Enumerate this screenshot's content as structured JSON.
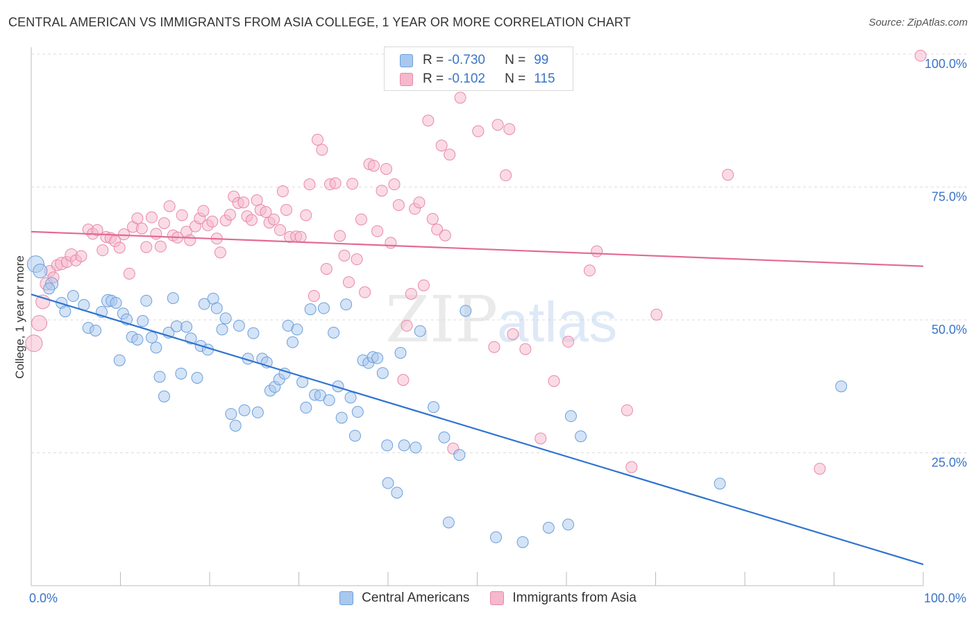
{
  "title": "CENTRAL AMERICAN VS IMMIGRANTS FROM ASIA COLLEGE, 1 YEAR OR MORE CORRELATION CHART",
  "source": "Source: ZipAtlas.com",
  "watermark": {
    "zip": "ZIP",
    "atlas": "atlas"
  },
  "colors": {
    "blue_fill": "#a9c8ee",
    "blue_stroke": "#6a9fdc",
    "blue_line": "#2f73d0",
    "pink_fill": "#f6b8cb",
    "pink_stroke": "#e888a8",
    "pink_line": "#e36a95",
    "tick_label": "#3a74c8",
    "grid": "#dcdcdc"
  },
  "legend_top": [
    {
      "r_label": "R =",
      "r_value": "-0.730",
      "n_label": "N =",
      "n_value": "99"
    },
    {
      "r_label": "R =",
      "r_value": "-0.102",
      "n_label": "N =",
      "n_value": "115"
    }
  ],
  "chart_data": {
    "type": "scatter",
    "title": "CENTRAL AMERICAN VS IMMIGRANTS FROM ASIA COLLEGE, 1 YEAR OR MORE CORRELATION CHART",
    "xlabel": "",
    "ylabel": "College, 1 year or more",
    "xlim": [
      0,
      100
    ],
    "ylim": [
      0,
      100
    ],
    "x_tick_labels": [
      "0.0%",
      "100.0%"
    ],
    "y_ticks": [
      25,
      50,
      75,
      100
    ],
    "y_tick_labels": [
      "25.0%",
      "50.0%",
      "75.0%",
      "100.0%"
    ],
    "grid": "horizontal dashed",
    "legend": "bottom",
    "series": [
      {
        "name": "Central Americans",
        "R": -0.73,
        "N": 99,
        "trend": {
          "x": [
            0,
            100
          ],
          "y": [
            54.8,
            4.0
          ]
        },
        "points": [
          [
            0.5,
            60.5,
            12
          ],
          [
            1.0,
            59.2,
            10
          ],
          [
            2.3,
            56.8,
            9
          ],
          [
            2.0,
            55.9,
            8
          ],
          [
            3.4,
            53.2,
            8
          ],
          [
            3.8,
            51.6,
            8
          ],
          [
            4.7,
            54.5,
            8
          ],
          [
            5.9,
            52.8,
            8
          ],
          [
            6.4,
            48.5,
            8
          ],
          [
            7.2,
            48.0,
            8
          ],
          [
            7.9,
            51.5,
            8
          ],
          [
            8.6,
            53.6,
            9
          ],
          [
            9.0,
            53.6,
            8
          ],
          [
            9.5,
            53.2,
            8
          ],
          [
            9.9,
            42.4,
            8
          ],
          [
            10.3,
            51.2,
            8
          ],
          [
            10.7,
            50.1,
            8
          ],
          [
            11.3,
            46.8,
            8
          ],
          [
            11.9,
            46.3,
            8
          ],
          [
            12.5,
            49.8,
            8
          ],
          [
            12.9,
            53.6,
            8
          ],
          [
            13.5,
            46.7,
            8
          ],
          [
            14.0,
            44.8,
            8
          ],
          [
            14.4,
            39.3,
            8
          ],
          [
            14.9,
            35.6,
            8
          ],
          [
            15.4,
            47.6,
            8
          ],
          [
            15.9,
            54.1,
            8
          ],
          [
            16.3,
            48.8,
            8
          ],
          [
            16.8,
            39.9,
            8
          ],
          [
            17.4,
            48.7,
            8
          ],
          [
            17.9,
            46.5,
            8
          ],
          [
            18.6,
            39.1,
            8
          ],
          [
            19.0,
            45.1,
            8
          ],
          [
            19.4,
            53.0,
            8
          ],
          [
            19.8,
            44.4,
            8
          ],
          [
            20.4,
            54.0,
            8
          ],
          [
            20.8,
            52.2,
            8
          ],
          [
            21.4,
            48.2,
            8
          ],
          [
            21.8,
            50.3,
            8
          ],
          [
            22.4,
            32.3,
            8
          ],
          [
            22.9,
            30.1,
            8
          ],
          [
            23.3,
            48.9,
            8
          ],
          [
            23.9,
            33.0,
            8
          ],
          [
            24.3,
            42.7,
            8
          ],
          [
            24.9,
            47.5,
            8
          ],
          [
            25.4,
            32.6,
            8
          ],
          [
            25.9,
            42.7,
            8
          ],
          [
            26.4,
            42.0,
            8
          ],
          [
            26.8,
            36.7,
            8
          ],
          [
            27.3,
            37.4,
            8
          ],
          [
            27.8,
            38.8,
            8
          ],
          [
            28.4,
            39.9,
            8
          ],
          [
            28.8,
            48.9,
            8
          ],
          [
            29.3,
            45.8,
            8
          ],
          [
            29.8,
            48.2,
            8
          ],
          [
            30.4,
            38.3,
            8
          ],
          [
            30.8,
            33.5,
            8
          ],
          [
            31.3,
            52.0,
            8
          ],
          [
            31.8,
            35.9,
            8
          ],
          [
            32.4,
            35.8,
            8
          ],
          [
            32.8,
            52.2,
            8
          ],
          [
            33.4,
            34.9,
            8
          ],
          [
            33.9,
            47.6,
            8
          ],
          [
            34.4,
            37.5,
            8
          ],
          [
            34.8,
            31.6,
            8
          ],
          [
            35.3,
            52.9,
            8
          ],
          [
            35.8,
            35.4,
            8
          ],
          [
            36.3,
            28.2,
            8
          ],
          [
            36.6,
            32.7,
            8
          ],
          [
            37.2,
            42.4,
            8
          ],
          [
            37.8,
            41.9,
            8
          ],
          [
            38.3,
            43.0,
            8
          ],
          [
            38.8,
            42.8,
            8
          ],
          [
            39.4,
            40.0,
            8
          ],
          [
            39.9,
            26.4,
            8
          ],
          [
            40.0,
            19.3,
            8
          ],
          [
            41.0,
            17.5,
            8
          ],
          [
            41.4,
            43.8,
            8
          ],
          [
            41.8,
            26.4,
            8
          ],
          [
            43.1,
            26.0,
            8
          ],
          [
            43.6,
            47.9,
            8
          ],
          [
            45.1,
            33.6,
            8
          ],
          [
            46.3,
            27.9,
            8
          ],
          [
            46.8,
            11.9,
            8
          ],
          [
            48.0,
            24.6,
            8
          ],
          [
            48.7,
            51.7,
            8
          ],
          [
            52.1,
            9.1,
            8
          ],
          [
            55.1,
            8.2,
            8
          ],
          [
            58.0,
            10.9,
            8
          ],
          [
            60.2,
            11.5,
            8
          ],
          [
            60.5,
            31.9,
            8
          ],
          [
            61.6,
            28.1,
            8
          ],
          [
            77.2,
            19.2,
            8
          ],
          [
            90.8,
            37.5,
            8
          ]
        ]
      },
      {
        "name": "Immigrants from Asia",
        "R": -0.102,
        "N": 115,
        "trend": {
          "x": [
            0,
            100
          ],
          "y": [
            66.6,
            60.1
          ]
        },
        "points": [
          [
            0.3,
            45.6,
            12
          ],
          [
            0.9,
            49.4,
            11
          ],
          [
            1.3,
            53.4,
            10
          ],
          [
            1.7,
            56.8,
            9
          ],
          [
            2.1,
            59.2,
            8
          ],
          [
            2.5,
            58.0,
            8
          ],
          [
            2.9,
            60.3,
            8
          ],
          [
            3.4,
            60.6,
            9
          ],
          [
            4.0,
            60.9,
            8
          ],
          [
            4.5,
            62.2,
            9
          ],
          [
            5.0,
            61.2,
            8
          ],
          [
            5.6,
            62.0,
            8
          ],
          [
            6.4,
            67.0,
            8
          ],
          [
            6.9,
            66.2,
            8
          ],
          [
            7.4,
            66.9,
            8
          ],
          [
            8.0,
            63.1,
            8
          ],
          [
            8.4,
            65.6,
            8
          ],
          [
            8.9,
            65.4,
            8
          ],
          [
            9.4,
            64.8,
            8
          ],
          [
            9.9,
            63.6,
            8
          ],
          [
            10.4,
            66.1,
            8
          ],
          [
            11.0,
            58.7,
            8
          ],
          [
            11.4,
            67.5,
            8
          ],
          [
            11.9,
            69.1,
            8
          ],
          [
            12.4,
            67.2,
            8
          ],
          [
            12.9,
            63.7,
            8
          ],
          [
            13.5,
            69.3,
            8
          ],
          [
            14.0,
            66.2,
            8
          ],
          [
            14.5,
            63.8,
            8
          ],
          [
            14.9,
            68.2,
            8
          ],
          [
            15.5,
            71.4,
            8
          ],
          [
            15.9,
            65.9,
            8
          ],
          [
            16.4,
            65.5,
            8
          ],
          [
            16.9,
            69.7,
            8
          ],
          [
            17.4,
            66.6,
            8
          ],
          [
            17.8,
            65.0,
            8
          ],
          [
            18.4,
            67.6,
            8
          ],
          [
            18.9,
            69.1,
            8
          ],
          [
            19.3,
            70.5,
            8
          ],
          [
            19.8,
            67.8,
            8
          ],
          [
            20.3,
            68.5,
            8
          ],
          [
            20.8,
            65.3,
            8
          ],
          [
            21.2,
            62.7,
            8
          ],
          [
            21.8,
            68.7,
            8
          ],
          [
            22.3,
            69.8,
            8
          ],
          [
            22.7,
            73.2,
            8
          ],
          [
            23.2,
            72.0,
            8
          ],
          [
            23.8,
            72.1,
            8
          ],
          [
            24.2,
            69.5,
            8
          ],
          [
            24.7,
            68.8,
            8
          ],
          [
            25.3,
            72.5,
            8
          ],
          [
            25.7,
            70.7,
            8
          ],
          [
            26.3,
            70.3,
            8
          ],
          [
            26.7,
            68.3,
            8
          ],
          [
            27.2,
            68.9,
            8
          ],
          [
            27.9,
            66.9,
            8
          ],
          [
            28.2,
            74.2,
            8
          ],
          [
            28.6,
            70.7,
            8
          ],
          [
            29.0,
            65.6,
            8
          ],
          [
            29.7,
            65.7,
            8
          ],
          [
            30.2,
            65.6,
            8
          ],
          [
            30.8,
            69.7,
            8
          ],
          [
            31.2,
            75.5,
            8
          ],
          [
            31.7,
            54.5,
            8
          ],
          [
            32.1,
            83.9,
            8
          ],
          [
            32.6,
            82.0,
            8
          ],
          [
            33.1,
            59.6,
            8
          ],
          [
            33.5,
            75.5,
            8
          ],
          [
            34.1,
            75.7,
            8
          ],
          [
            34.6,
            65.8,
            8
          ],
          [
            35.1,
            62.1,
            8
          ],
          [
            35.6,
            57.1,
            8
          ],
          [
            36.0,
            75.6,
            8
          ],
          [
            36.5,
            61.4,
            8
          ],
          [
            37.0,
            68.9,
            8
          ],
          [
            37.4,
            55.2,
            8
          ],
          [
            37.9,
            79.3,
            8
          ],
          [
            38.4,
            79.0,
            8
          ],
          [
            38.8,
            66.7,
            8
          ],
          [
            39.3,
            74.3,
            8
          ],
          [
            39.8,
            78.4,
            8
          ],
          [
            40.3,
            64.5,
            8
          ],
          [
            40.7,
            75.5,
            8
          ],
          [
            41.2,
            71.6,
            8
          ],
          [
            41.7,
            38.7,
            8
          ],
          [
            42.1,
            48.9,
            8
          ],
          [
            42.6,
            54.9,
            8
          ],
          [
            43.0,
            70.9,
            8
          ],
          [
            43.5,
            72.1,
            8
          ],
          [
            44.0,
            56.5,
            8
          ],
          [
            44.5,
            87.5,
            8
          ],
          [
            45.0,
            69.0,
            8
          ],
          [
            45.5,
            67.0,
            8
          ],
          [
            46.0,
            82.8,
            8
          ],
          [
            46.4,
            65.9,
            8
          ],
          [
            46.9,
            81.1,
            8
          ],
          [
            47.3,
            25.8,
            8
          ],
          [
            48.1,
            91.8,
            8
          ],
          [
            50.1,
            85.5,
            8
          ],
          [
            51.9,
            44.9,
            8
          ],
          [
            52.3,
            86.7,
            8
          ],
          [
            53.2,
            77.2,
            8
          ],
          [
            53.6,
            85.9,
            8
          ],
          [
            54.0,
            47.3,
            8
          ],
          [
            55.4,
            44.5,
            8
          ],
          [
            57.1,
            27.7,
            8
          ],
          [
            58.6,
            38.5,
            8
          ],
          [
            60.2,
            45.9,
            8
          ],
          [
            62.6,
            59.3,
            8
          ],
          [
            63.4,
            62.9,
            8
          ],
          [
            66.8,
            33.0,
            8
          ],
          [
            67.3,
            22.3,
            8
          ],
          [
            70.1,
            51.0,
            8
          ],
          [
            78.1,
            77.3,
            8
          ],
          [
            88.4,
            22.0,
            8
          ],
          [
            99.7,
            99.7,
            8
          ]
        ]
      }
    ]
  }
}
